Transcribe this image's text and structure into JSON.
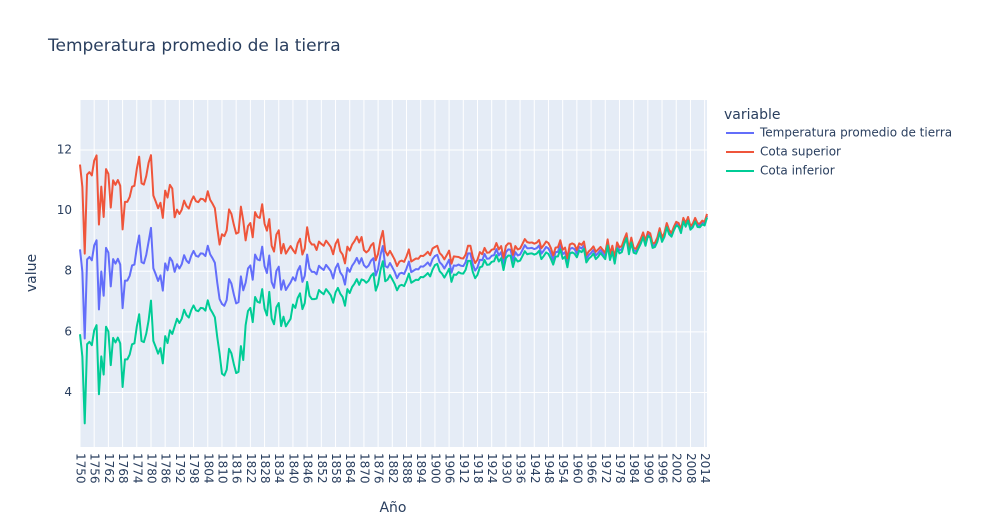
{
  "chart_data": {
    "type": "line",
    "title": "Temperatura promedio de la tierra",
    "x_label": "Año",
    "y_label": "value",
    "legend_title": "variable",
    "legend": "right",
    "grid": true,
    "xlim": [
      1750,
      2015
    ],
    "ylim": [
      2.2,
      13.65
    ],
    "xticks": [
      1750,
      1756,
      1762,
      1768,
      1774,
      1780,
      1786,
      1792,
      1798,
      1804,
      1810,
      1816,
      1822,
      1828,
      1834,
      1840,
      1846,
      1852,
      1858,
      1864,
      1870,
      1876,
      1882,
      1888,
      1894,
      1900,
      1906,
      1912,
      1918,
      1924,
      1930,
      1936,
      1942,
      1948,
      1954,
      1960,
      1966,
      1972,
      1978,
      1984,
      1990,
      1996,
      2002,
      2008,
      2014
    ],
    "yticks": [
      4,
      6,
      8,
      10,
      12
    ],
    "x": [
      1750,
      1751,
      1752,
      1753,
      1754,
      1755,
      1756,
      1757,
      1758,
      1759,
      1760,
      1761,
      1762,
      1763,
      1764,
      1765,
      1766,
      1767,
      1768,
      1769,
      1770,
      1771,
      1772,
      1773,
      1774,
      1775,
      1776,
      1777,
      1778,
      1779,
      1780,
      1781,
      1782,
      1783,
      1784,
      1785,
      1786,
      1787,
      1788,
      1789,
      1790,
      1791,
      1792,
      1793,
      1794,
      1795,
      1796,
      1797,
      1798,
      1799,
      1800,
      1801,
      1802,
      1803,
      1804,
      1805,
      1806,
      1807,
      1808,
      1809,
      1810,
      1811,
      1812,
      1813,
      1814,
      1815,
      1816,
      1817,
      1818,
      1819,
      1820,
      1821,
      1822,
      1823,
      1824,
      1825,
      1826,
      1827,
      1828,
      1829,
      1830,
      1831,
      1832,
      1833,
      1834,
      1835,
      1836,
      1837,
      1838,
      1839,
      1840,
      1841,
      1842,
      1843,
      1844,
      1845,
      1846,
      1847,
      1848,
      1849,
      1850,
      1851,
      1852,
      1853,
      1854,
      1855,
      1856,
      1857,
      1858,
      1859,
      1860,
      1861,
      1862,
      1863,
      1864,
      1865,
      1866,
      1867,
      1868,
      1869,
      1870,
      1871,
      1872,
      1873,
      1874,
      1875,
      1876,
      1877,
      1878,
      1879,
      1880,
      1881,
      1882,
      1883,
      1884,
      1885,
      1886,
      1887,
      1888,
      1889,
      1890,
      1891,
      1892,
      1893,
      1894,
      1895,
      1896,
      1897,
      1898,
      1899,
      1900,
      1901,
      1902,
      1903,
      1904,
      1905,
      1906,
      1907,
      1908,
      1909,
      1910,
      1911,
      1912,
      1913,
      1914,
      1915,
      1916,
      1917,
      1918,
      1919,
      1920,
      1921,
      1922,
      1923,
      1924,
      1925,
      1926,
      1927,
      1928,
      1929,
      1930,
      1931,
      1932,
      1933,
      1934,
      1935,
      1936,
      1937,
      1938,
      1939,
      1940,
      1941,
      1942,
      1943,
      1944,
      1945,
      1946,
      1947,
      1948,
      1949,
      1950,
      1951,
      1952,
      1953,
      1954,
      1955,
      1956,
      1957,
      1958,
      1959,
      1960,
      1961,
      1962,
      1963,
      1964,
      1965,
      1966,
      1967,
      1968,
      1969,
      1970,
      1971,
      1972,
      1973,
      1974,
      1975,
      1976,
      1977,
      1978,
      1979,
      1980,
      1981,
      1982,
      1983,
      1984,
      1985,
      1986,
      1987,
      1988,
      1989,
      1990,
      1991,
      1992,
      1993,
      1994,
      1995,
      1996,
      1997,
      1998,
      1999,
      2000,
      2001,
      2002,
      2003,
      2004,
      2005,
      2006,
      2007,
      2008,
      2009,
      2010,
      2011,
      2012,
      2013,
      2014,
      2015
    ],
    "series": [
      {
        "name": "Temperatura promedio de tierra",
        "color": "#636efa",
        "values": [
          8.72,
          7.98,
          5.78,
          8.39,
          8.47,
          8.36,
          8.85,
          9.02,
          6.74,
          7.99,
          7.19,
          8.77,
          8.61,
          7.5,
          8.4,
          8.25,
          8.41,
          8.22,
          6.78,
          7.69,
          7.69,
          7.85,
          8.19,
          8.22,
          8.77,
          9.18,
          8.3,
          8.26,
          8.54,
          8.98,
          9.43,
          8.1,
          7.9,
          7.68,
          7.86,
          7.36,
          8.26,
          8.03,
          8.45,
          8.33,
          7.98,
          8.23,
          8.09,
          8.23,
          8.53,
          8.35,
          8.27,
          8.51,
          8.67,
          8.51,
          8.48,
          8.59,
          8.58,
          8.5,
          8.84,
          8.56,
          8.43,
          8.28,
          7.63,
          7.08,
          6.92,
          6.86,
          7.05,
          7.74,
          7.59,
          7.24,
          6.94,
          6.98,
          7.83,
          7.37,
          7.62,
          8.09,
          8.19,
          7.72,
          8.55,
          8.39,
          8.36,
          8.81,
          8.17,
          7.94,
          8.52,
          7.64,
          7.45,
          8.01,
          8.15,
          7.39,
          7.7,
          7.38,
          7.51,
          7.63,
          7.8,
          7.69,
          8.02,
          8.17,
          7.65,
          7.85,
          8.55,
          8.09,
          7.98,
          7.98,
          7.9,
          8.18,
          8.1,
          8.04,
          8.21,
          8.11,
          8.0,
          7.76,
          8.1,
          8.25,
          7.96,
          7.85,
          7.56,
          8.11,
          7.98,
          8.18,
          8.29,
          8.44,
          8.25,
          8.43,
          8.2,
          8.12,
          8.19,
          8.35,
          8.43,
          7.86,
          8.08,
          8.54,
          8.83,
          8.17,
          8.12,
          8.27,
          8.13,
          7.98,
          7.77,
          7.92,
          7.95,
          7.91,
          8.09,
          8.32,
          7.97,
          8.02,
          8.07,
          8.06,
          8.16,
          8.15,
          8.21,
          8.29,
          8.18,
          8.4,
          8.5,
          8.54,
          8.3,
          8.22,
          8.09,
          8.23,
          8.38,
          7.95,
          8.19,
          8.18,
          8.22,
          8.18,
          8.17,
          8.3,
          8.59,
          8.59,
          8.23,
          8.02,
          8.13,
          8.38,
          8.36,
          8.57,
          8.41,
          8.42,
          8.51,
          8.53,
          8.73,
          8.52,
          8.63,
          8.24,
          8.63,
          8.72,
          8.71,
          8.34,
          8.63,
          8.52,
          8.55,
          8.7,
          8.86,
          8.76,
          8.76,
          8.77,
          8.73,
          8.76,
          8.85,
          8.58,
          8.68,
          8.8,
          8.75,
          8.59,
          8.37,
          8.63,
          8.64,
          8.87,
          8.56,
          8.63,
          8.28,
          8.73,
          8.77,
          8.73,
          8.58,
          8.8,
          8.75,
          8.86,
          8.41,
          8.53,
          8.6,
          8.7,
          8.52,
          8.6,
          8.7,
          8.6,
          8.5,
          8.95,
          8.47,
          8.74,
          8.35,
          8.85,
          8.69,
          8.73,
          8.98,
          9.17,
          8.64,
          9.03,
          8.69,
          8.66,
          8.83,
          8.99,
          9.2,
          8.92,
          9.23,
          9.18,
          8.84,
          8.87,
          9.04,
          9.35,
          9.04,
          9.2,
          9.52,
          9.29,
          9.2,
          9.41,
          9.57,
          9.53,
          9.32,
          9.7,
          9.53,
          9.73,
          9.43,
          9.51,
          9.7,
          9.52,
          9.51,
          9.61,
          9.57,
          9.83
        ]
      },
      {
        "name": "Cota superior",
        "color": "#EF553B",
        "values": [
          11.52,
          10.78,
          8.58,
          11.19,
          11.27,
          11.16,
          11.65,
          11.82,
          9.54,
          10.79,
          9.79,
          11.37,
          11.21,
          10.1,
          11.0,
          10.85,
          11.01,
          10.82,
          9.38,
          10.29,
          10.29,
          10.45,
          10.79,
          10.82,
          11.37,
          11.78,
          10.9,
          10.86,
          11.14,
          11.58,
          11.83,
          10.5,
          10.3,
          10.08,
          10.26,
          9.76,
          10.66,
          10.43,
          10.85,
          10.73,
          9.78,
          10.03,
          9.89,
          10.03,
          10.33,
          10.15,
          10.07,
          10.31,
          10.47,
          10.31,
          10.28,
          10.39,
          10.38,
          10.3,
          10.64,
          10.36,
          10.23,
          10.08,
          9.43,
          8.88,
          9.22,
          9.16,
          9.35,
          10.04,
          9.89,
          9.54,
          9.24,
          9.28,
          10.13,
          9.67,
          9.02,
          9.49,
          9.59,
          9.12,
          9.95,
          9.79,
          9.76,
          10.21,
          9.57,
          9.34,
          9.72,
          8.84,
          8.65,
          9.21,
          9.35,
          8.59,
          8.9,
          8.58,
          8.71,
          8.83,
          8.7,
          8.59,
          8.92,
          9.07,
          8.55,
          8.75,
          9.45,
          8.99,
          8.88,
          8.88,
          8.7,
          8.98,
          8.9,
          8.84,
          9.01,
          8.91,
          8.8,
          8.56,
          8.9,
          9.05,
          8.66,
          8.55,
          8.26,
          8.81,
          8.68,
          8.88,
          8.99,
          9.14,
          8.95,
          9.13,
          8.7,
          8.62,
          8.69,
          8.85,
          8.93,
          8.36,
          8.58,
          9.04,
          9.33,
          8.67,
          8.52,
          8.67,
          8.53,
          8.38,
          8.17,
          8.32,
          8.35,
          8.31,
          8.49,
          8.72,
          8.32,
          8.37,
          8.42,
          8.41,
          8.51,
          8.5,
          8.56,
          8.64,
          8.53,
          8.75,
          8.8,
          8.84,
          8.6,
          8.52,
          8.39,
          8.53,
          8.68,
          8.25,
          8.49,
          8.48,
          8.47,
          8.43,
          8.42,
          8.55,
          8.84,
          8.84,
          8.48,
          8.27,
          8.38,
          8.63,
          8.56,
          8.77,
          8.61,
          8.62,
          8.71,
          8.73,
          8.93,
          8.72,
          8.83,
          8.44,
          8.83,
          8.92,
          8.91,
          8.54,
          8.83,
          8.72,
          8.75,
          8.9,
          9.06,
          8.96,
          8.94,
          8.95,
          8.91,
          8.94,
          9.03,
          8.76,
          8.86,
          8.98,
          8.93,
          8.77,
          8.52,
          8.78,
          8.79,
          9.02,
          8.71,
          8.78,
          8.43,
          8.88,
          8.92,
          8.88,
          8.7,
          8.92,
          8.87,
          8.98,
          8.53,
          8.65,
          8.72,
          8.82,
          8.64,
          8.72,
          8.8,
          8.7,
          8.6,
          9.05,
          8.57,
          8.84,
          8.45,
          8.95,
          8.79,
          8.83,
          9.06,
          9.25,
          8.72,
          9.11,
          8.77,
          8.74,
          8.91,
          9.07,
          9.28,
          9.0,
          9.3,
          9.25,
          8.91,
          8.94,
          9.11,
          9.42,
          9.11,
          9.27,
          9.59,
          9.36,
          9.26,
          9.47,
          9.63,
          9.59,
          9.38,
          9.76,
          9.59,
          9.79,
          9.49,
          9.57,
          9.76,
          9.58,
          9.57,
          9.67,
          9.63,
          9.89
        ]
      },
      {
        "name": "Cota inferior",
        "color": "#00cc96",
        "values": [
          5.92,
          5.18,
          2.98,
          5.59,
          5.67,
          5.56,
          6.05,
          6.22,
          3.94,
          5.19,
          4.59,
          6.17,
          6.01,
          4.9,
          5.8,
          5.65,
          5.81,
          5.62,
          4.18,
          5.09,
          5.09,
          5.25,
          5.59,
          5.62,
          6.17,
          6.58,
          5.7,
          5.66,
          5.94,
          6.38,
          7.03,
          5.7,
          5.5,
          5.28,
          5.46,
          4.96,
          5.86,
          5.63,
          6.05,
          5.93,
          6.18,
          6.43,
          6.29,
          6.43,
          6.73,
          6.55,
          6.47,
          6.71,
          6.87,
          6.71,
          6.68,
          6.79,
          6.78,
          6.7,
          7.04,
          6.76,
          6.63,
          6.48,
          5.83,
          5.28,
          4.62,
          4.56,
          4.75,
          5.44,
          5.29,
          4.94,
          4.64,
          4.68,
          5.53,
          5.07,
          6.22,
          6.69,
          6.79,
          6.32,
          7.15,
          6.99,
          6.96,
          7.41,
          6.77,
          6.54,
          7.32,
          6.44,
          6.25,
          6.81,
          6.95,
          6.19,
          6.5,
          6.18,
          6.31,
          6.43,
          6.9,
          6.79,
          7.12,
          7.27,
          6.75,
          6.95,
          7.65,
          7.19,
          7.08,
          7.08,
          7.1,
          7.38,
          7.3,
          7.24,
          7.41,
          7.31,
          7.2,
          6.96,
          7.3,
          7.45,
          7.26,
          7.15,
          6.86,
          7.41,
          7.28,
          7.48,
          7.59,
          7.74,
          7.55,
          7.73,
          7.7,
          7.62,
          7.69,
          7.85,
          7.93,
          7.36,
          7.58,
          8.04,
          8.33,
          7.67,
          7.72,
          7.87,
          7.73,
          7.58,
          7.37,
          7.52,
          7.55,
          7.51,
          7.69,
          7.92,
          7.62,
          7.67,
          7.72,
          7.71,
          7.81,
          7.8,
          7.86,
          7.94,
          7.83,
          8.05,
          8.2,
          8.24,
          8.0,
          7.92,
          7.79,
          7.93,
          8.08,
          7.65,
          7.89,
          7.88,
          7.97,
          7.93,
          7.92,
          8.05,
          8.34,
          8.34,
          7.98,
          7.77,
          7.88,
          8.13,
          8.16,
          8.37,
          8.21,
          8.22,
          8.31,
          8.33,
          8.53,
          8.32,
          8.43,
          8.04,
          8.43,
          8.52,
          8.51,
          8.14,
          8.43,
          8.32,
          8.35,
          8.5,
          8.66,
          8.56,
          8.58,
          8.59,
          8.55,
          8.58,
          8.67,
          8.4,
          8.5,
          8.62,
          8.57,
          8.41,
          8.22,
          8.48,
          8.49,
          8.72,
          8.41,
          8.48,
          8.13,
          8.58,
          8.62,
          8.58,
          8.46,
          8.68,
          8.63,
          8.74,
          8.29,
          8.41,
          8.48,
          8.58,
          8.4,
          8.48,
          8.6,
          8.5,
          8.4,
          8.85,
          8.37,
          8.64,
          8.25,
          8.75,
          8.59,
          8.63,
          8.9,
          9.09,
          8.56,
          8.95,
          8.61,
          8.58,
          8.75,
          8.91,
          9.12,
          8.84,
          9.16,
          9.11,
          8.77,
          8.8,
          8.97,
          9.28,
          8.97,
          9.13,
          9.45,
          9.22,
          9.14,
          9.35,
          9.51,
          9.47,
          9.26,
          9.64,
          9.47,
          9.67,
          9.37,
          9.45,
          9.64,
          9.46,
          9.45,
          9.55,
          9.51,
          9.77
        ]
      }
    ]
  }
}
